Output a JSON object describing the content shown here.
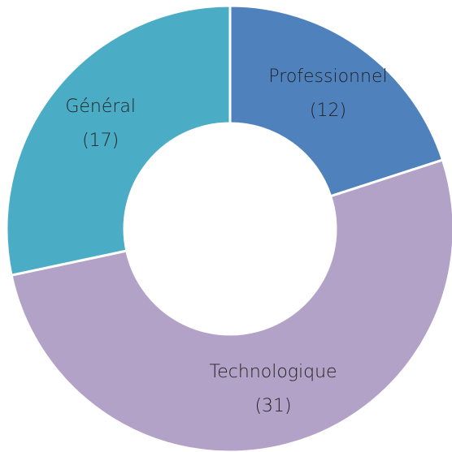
{
  "chart_data": {
    "type": "donut",
    "categories": [
      "Professionnel",
      "Technologique",
      "Général"
    ],
    "values": [
      12,
      31,
      17
    ],
    "value_labels": [
      "(12)",
      "(31)",
      "(17)"
    ],
    "colors": [
      "#4f81bd",
      "#b3a2c7",
      "#4bacc6"
    ]
  }
}
